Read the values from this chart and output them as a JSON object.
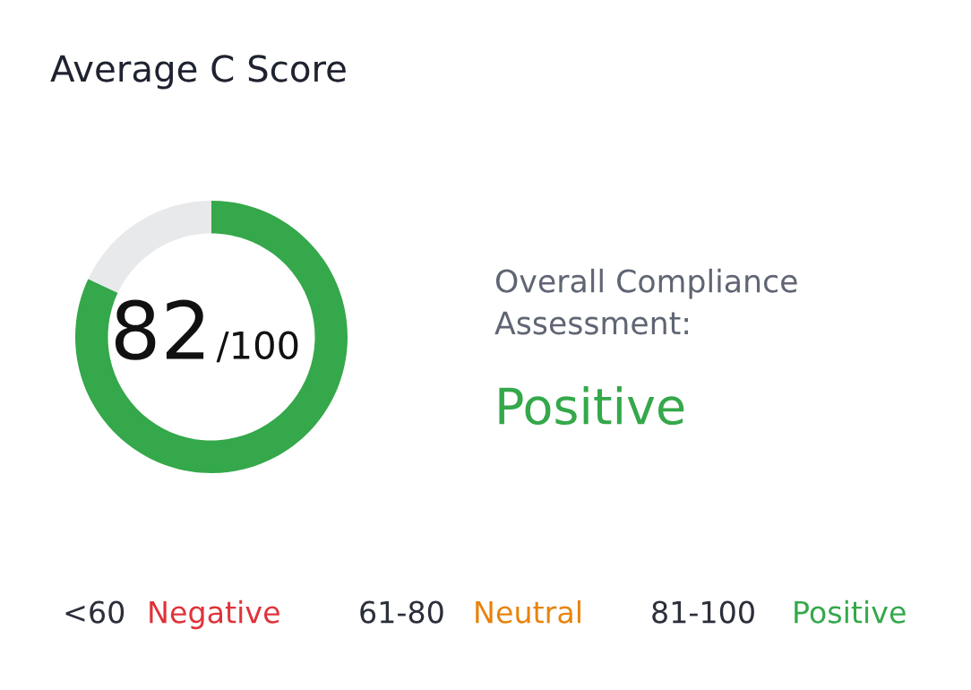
{
  "chart_data": {
    "type": "donut",
    "title": "Average C Score",
    "categories": [
      null,
      null
    ],
    "values": [
      82,
      18
    ],
    "colors": [
      "#34a84a",
      "#e8e9eb"
    ],
    "annotations": [
      "82",
      "/100",
      "Overall Compliance\nAssessment:",
      "Positive",
      "<60",
      "Negative",
      "61-80",
      "Neutral",
      "81-100",
      "Positive"
    ]
  }
}
